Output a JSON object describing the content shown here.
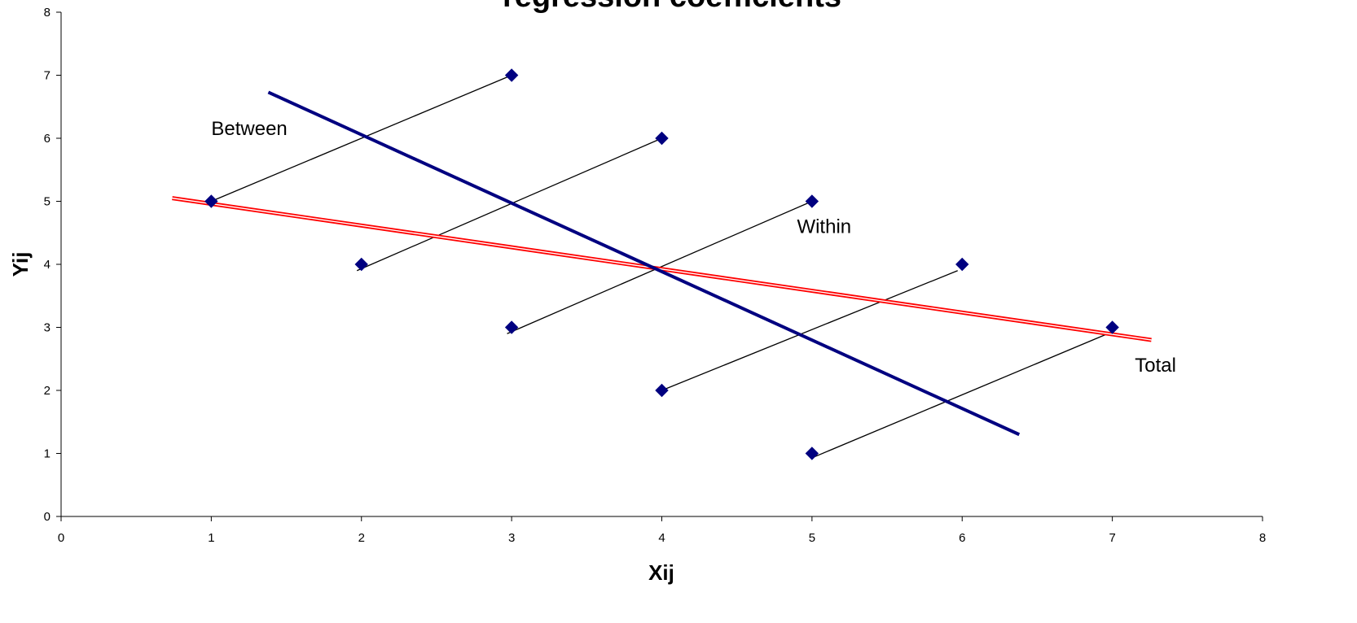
{
  "chart_data": {
    "type": "scatter",
    "title": "regression coefficients",
    "xlabel": "Xij",
    "ylabel": "Yij",
    "xlim": [
      0,
      8
    ],
    "ylim": [
      0,
      8
    ],
    "x_ticks": [
      "0",
      "1",
      "2",
      "3",
      "4",
      "5",
      "6",
      "7",
      "8"
    ],
    "y_ticks": [
      "0",
      "1",
      "2",
      "3",
      "4",
      "5",
      "6",
      "7",
      "8"
    ],
    "grid": false,
    "legend": "none",
    "marker": "diamond",
    "colors": {
      "points": "#000080",
      "within_lines": "#000000",
      "between_line": "#000080",
      "total_line": "#ff0000"
    },
    "points": [
      {
        "x": 1,
        "y": 5
      },
      {
        "x": 3,
        "y": 7
      },
      {
        "x": 2,
        "y": 4
      },
      {
        "x": 4,
        "y": 6
      },
      {
        "x": 3,
        "y": 3
      },
      {
        "x": 5,
        "y": 5
      },
      {
        "x": 4,
        "y": 2
      },
      {
        "x": 6,
        "y": 4
      },
      {
        "x": 5,
        "y": 1
      },
      {
        "x": 7,
        "y": 3
      }
    ],
    "within_lines": [
      {
        "x1": 1,
        "y1": 5,
        "x2": 3,
        "y2": 7
      },
      {
        "x1": 1.97,
        "y1": 3.9,
        "x2": 4,
        "y2": 6
      },
      {
        "x1": 2.97,
        "y1": 2.9,
        "x2": 5,
        "y2": 5
      },
      {
        "x1": 4,
        "y1": 2,
        "x2": 5.97,
        "y2": 3.9
      },
      {
        "x1": 5,
        "y1": 0.93,
        "x2": 6.97,
        "y2": 2.9
      }
    ],
    "between_line": {
      "x1": 1.38,
      "y1": 6.73,
      "x2": 6.38,
      "y2": 1.3
    },
    "total_line": {
      "x1": 0.74,
      "y1": 5.05,
      "x2": 7.26,
      "y2": 2.8
    },
    "annotations": [
      {
        "text": "Between",
        "x": 1.0,
        "y": 6.05
      },
      {
        "text": "Within",
        "x": 4.9,
        "y": 4.5
      },
      {
        "text": "Total",
        "x": 7.15,
        "y": 2.3
      }
    ]
  }
}
